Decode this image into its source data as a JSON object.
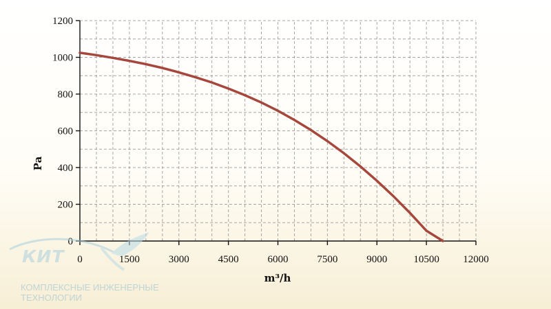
{
  "chart_data": {
    "type": "line",
    "xlabel": "m³/h",
    "ylabel": "Pa",
    "xlim": [
      0,
      12000
    ],
    "ylim": [
      0,
      1200
    ],
    "x_ticks": [
      0,
      1500,
      3000,
      4500,
      6000,
      7500,
      9000,
      10500,
      12000
    ],
    "y_ticks": [
      0,
      200,
      400,
      600,
      800,
      1000,
      1200
    ],
    "grid": true,
    "x_minor_step": 500,
    "y_minor_step": 100,
    "series": [
      {
        "color": "#a5473c",
        "x": [
          0,
          500,
          1000,
          1500,
          2000,
          2500,
          3000,
          3500,
          4000,
          4500,
          5000,
          5500,
          6000,
          6500,
          7000,
          7500,
          8000,
          8500,
          9000,
          9500,
          10000,
          10500,
          11000
        ],
        "y": [
          1025,
          1012,
          997,
          981,
          963,
          942,
          918,
          892,
          863,
          830,
          794,
          754,
          709,
          659,
          604,
          544,
          478,
          406,
          328,
          244,
          153,
          56,
          0
        ]
      }
    ]
  },
  "logo": {
    "name": "КИТ",
    "tagline_line1": "КОМПЛЕКСНЫЕ ИНЖЕНЕРНЫЕ",
    "tagline_line2": "ТЕХНОЛОГИИ",
    "color": "#8fbfd1"
  }
}
